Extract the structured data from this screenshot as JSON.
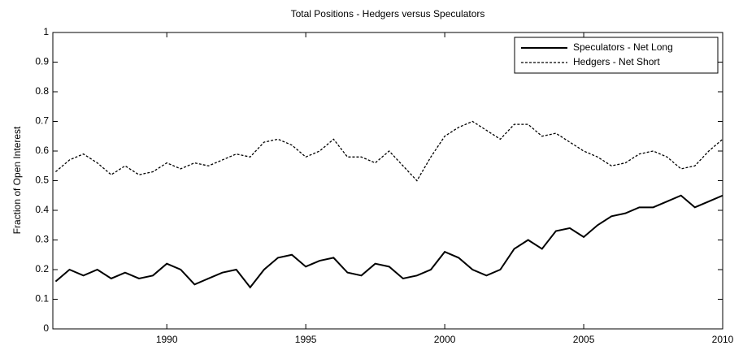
{
  "chart_data": {
    "type": "line",
    "title": "Total Positions - Hedgers versus Speculators",
    "y_label": "Fraction of Open Interest",
    "x": [
      1986,
      1986.5,
      1987,
      1987.5,
      1988,
      1988.5,
      1989,
      1989.5,
      1990,
      1990.5,
      1991,
      1991.5,
      1992,
      1992.5,
      1993,
      1993.5,
      1994,
      1994.5,
      1995,
      1995.5,
      1996,
      1996.5,
      1997,
      1997.5,
      1998,
      1998.5,
      1999,
      1999.5,
      2000,
      2000.5,
      2001,
      2001.5,
      2002,
      2002.5,
      2003,
      2003.5,
      2004,
      2004.5,
      2005,
      2005.5,
      2006,
      2006.5,
      2007,
      2007.5,
      2008,
      2008.5,
      2009,
      2009.5,
      2010
    ],
    "series": [
      {
        "name": "Speculators - Net Long",
        "color": "#000000",
        "style": "solid",
        "values": [
          0.16,
          0.2,
          0.18,
          0.2,
          0.17,
          0.19,
          0.17,
          0.18,
          0.22,
          0.2,
          0.15,
          0.17,
          0.19,
          0.2,
          0.14,
          0.2,
          0.24,
          0.25,
          0.21,
          0.23,
          0.24,
          0.19,
          0.18,
          0.22,
          0.21,
          0.17,
          0.18,
          0.2,
          0.26,
          0.24,
          0.2,
          0.18,
          0.2,
          0.27,
          0.3,
          0.27,
          0.33,
          0.34,
          0.31,
          0.35,
          0.38,
          0.39,
          0.41,
          0.41,
          0.43,
          0.45,
          0.41,
          0.43,
          0.45
        ]
      },
      {
        "name": "Hedgers - Net Short",
        "color": "#000000",
        "style": "dashed",
        "values": [
          0.53,
          0.57,
          0.59,
          0.56,
          0.52,
          0.55,
          0.52,
          0.53,
          0.56,
          0.54,
          0.56,
          0.55,
          0.57,
          0.59,
          0.58,
          0.63,
          0.64,
          0.62,
          0.58,
          0.6,
          0.64,
          0.58,
          0.58,
          0.56,
          0.6,
          0.55,
          0.5,
          0.58,
          0.65,
          0.68,
          0.7,
          0.67,
          0.64,
          0.69,
          0.69,
          0.65,
          0.66,
          0.63,
          0.6,
          0.58,
          0.55,
          0.56,
          0.59,
          0.6,
          0.58,
          0.54,
          0.55,
          0.6,
          0.64
        ]
      }
    ],
    "xlim": [
      1985.9,
      2010
    ],
    "xticks": [
      1990,
      1995,
      2000,
      2005,
      2010
    ],
    "ylim": [
      0,
      1
    ],
    "yticks": [
      0,
      0.1,
      0.2,
      0.3,
      0.4,
      0.5,
      0.6,
      0.7,
      0.8,
      0.9,
      1
    ],
    "legend": "upper right"
  }
}
